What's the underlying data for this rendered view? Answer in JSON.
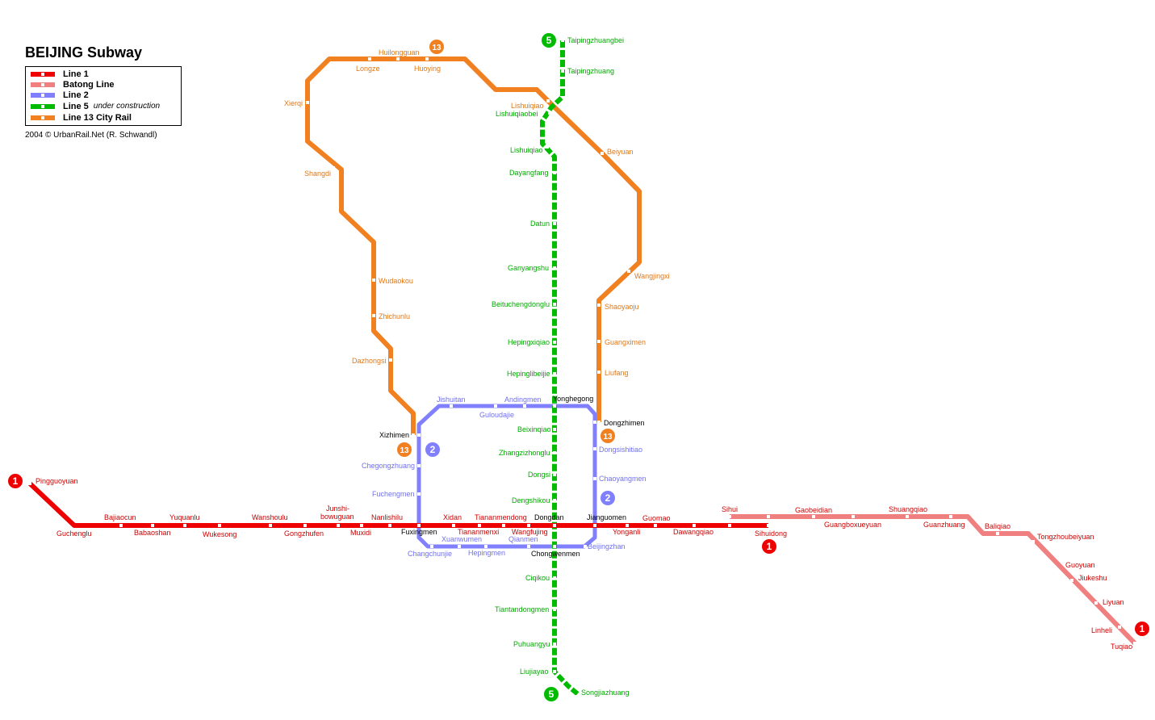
{
  "title": "BEIJING Subway",
  "credit": "2004 © UrbanRail.Net (R. Schwandl)",
  "legend": [
    {
      "label": "Line 1",
      "color": "#ee0000",
      "note": ""
    },
    {
      "label": "Batong Line",
      "color": "#f08080",
      "note": ""
    },
    {
      "label": "Line 2",
      "color": "#8080ff",
      "note": ""
    },
    {
      "label": "Line 5",
      "color": "#00bb00",
      "note": "under construction"
    },
    {
      "label": "Line 13 City Rail",
      "color": "#f08020",
      "note": ""
    }
  ],
  "colors": {
    "line1": "#ee0000",
    "batong": "#f08080",
    "line2": "#8080ff",
    "line5": "#00bb00",
    "line13": "#f08020",
    "interchange_text": "#000000"
  },
  "line_badges": {
    "line1": "1",
    "line2": "2",
    "line5": "5",
    "line13": "13"
  },
  "stations": {
    "line1": [
      "Pingguoyuan",
      "Guchenglu",
      "Bajiaocun",
      "Babaoshan",
      "Yuquanlu",
      "Wukesong",
      "Wanshoulu",
      "Gongzhufen",
      "Junshi-",
      "bowuguan",
      "Muxidi",
      "Nanlishilu",
      "Xidan",
      "Tiananmenxi",
      "Tiananmendong",
      "Wangfujing",
      "Yonganli",
      "Guomao",
      "Dawangqiao",
      "Sihuidong"
    ],
    "batong": [
      "Sihui",
      "Gaobeidian",
      "Guangboxueyuan",
      "Shuangqiao",
      "Guanzhuang",
      "Baliqiao",
      "Tongzhoubeiyuan",
      "Guoyuan",
      "Jiukeshu",
      "Liyuan",
      "Linheli",
      "Tuqiao"
    ],
    "line2": [
      "Jishuitan",
      "Guloudajie",
      "Andingmen",
      "Dongsishitiao",
      "Chaoyangmen",
      "Beijingzhan",
      "Hepingmen",
      "Xuanwumen",
      "Qianmen",
      "Changchunjie",
      "Chegongzhuang",
      "Fuchengmen"
    ],
    "line5": [
      "Taipingzhuangbei",
      "Taipingzhuang",
      "Lishuiqiaobei",
      "Lishuiqiao",
      "Dayangfang",
      "Datun",
      "Ganyangshu",
      "Beituchengdonglu",
      "Hepingxiqiao",
      "Hepinglibeijie",
      "Beixinqiao",
      "Zhangzizhonglu",
      "Dongsi",
      "Dengshikou",
      "Ciqikou",
      "Tiantandongmen",
      "Puhuangyu",
      "Liujiayao",
      "Songjiazhuang"
    ],
    "line13": [
      "Huilongguan",
      "Longze",
      "Huoying",
      "Xierqi",
      "Shangdi",
      "Wudaokou",
      "Zhichunlu",
      "Dazhongsi",
      "Lishuiqiao",
      "Beiyuan",
      "Wangjingxi",
      "Shaoyaoju",
      "Guangximen",
      "Liufang"
    ],
    "interchanges": [
      "Xizhimen",
      "Fuxingmen",
      "Dongdan",
      "Jianguomen",
      "Chongwenmen",
      "Yonghegong",
      "Dongzhimen"
    ]
  }
}
